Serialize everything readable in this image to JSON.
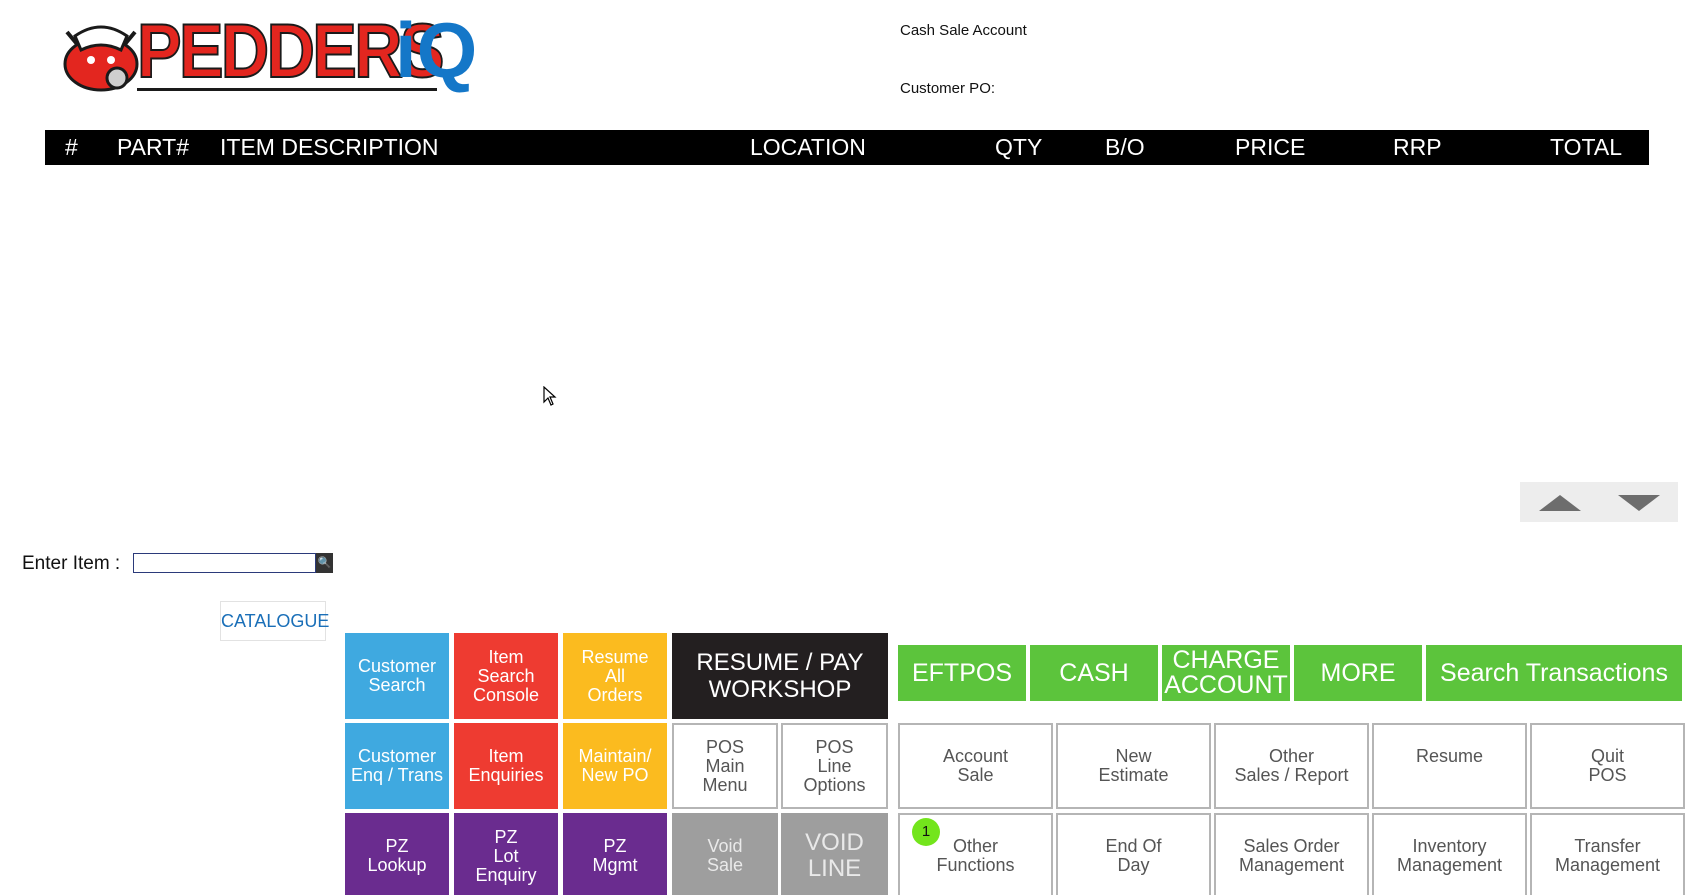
{
  "logo": {
    "brand": "PEDDERS",
    "suffix": "iQ",
    "mascot": "bull-mascot-icon"
  },
  "info": {
    "account_label": "Cash Sale Account",
    "po_label": "Customer PO:"
  },
  "grid": {
    "columns": [
      "#",
      "PART#",
      "ITEM DESCRIPTION",
      "LOCATION",
      "QTY",
      "B/O",
      "PRICE",
      "RRP",
      "TOTAL"
    ],
    "rows": []
  },
  "entry": {
    "label": "Enter Item :",
    "value": "",
    "search_icon": "search-icon"
  },
  "catalogue": "CATALOGUE",
  "tiles": {
    "customer_search": "Customer\nSearch",
    "item_search_console": "Item\nSearch\nConsole",
    "resume_all_orders": "Resume\nAll\nOrders",
    "resume_pay_workshop": "RESUME / PAY\nWORKSHOP",
    "customer_enq": "Customer\nEnq / Trans",
    "item_enquiries": "Item\nEnquiries",
    "maintain_po": "Maintain/\nNew PO",
    "pos_main_menu": "POS\nMain\nMenu",
    "pos_line_options": "POS\nLine\nOptions",
    "pz_lookup": "PZ\nLookup",
    "pz_lot_enquiry": "PZ\nLot\nEnquiry",
    "pz_mgmt": "PZ\nMgmt",
    "void_sale": "Void\nSale",
    "void_line": "VOID\nLINE",
    "eftpos": "EFTPOS",
    "cash": "CASH",
    "charge_account": "CHARGE\nACCOUNT",
    "more": "MORE",
    "search_transactions": "Search Transactions",
    "account_sale": "Account\nSale",
    "new_estimate": "New\nEstimate",
    "other_sales_report": "Other\nSales / Report",
    "resume": "Resume",
    "quit_pos": "Quit\nPOS",
    "other_functions": "Other\nFunctions",
    "other_functions_badge": "1",
    "end_of_day": "End Of\nDay",
    "sales_order_mgmt": "Sales Order\nManagement",
    "inventory_mgmt": "Inventory\nManagement",
    "transfer_mgmt": "Transfer\nManagement"
  },
  "colors": {
    "blue": "#3fa9e0",
    "red": "#ee3b31",
    "yellow": "#fbbb1f",
    "black": "#231f20",
    "purple": "#6a2c8f",
    "grey": "#9e9e9e",
    "green": "#5cc43c"
  }
}
